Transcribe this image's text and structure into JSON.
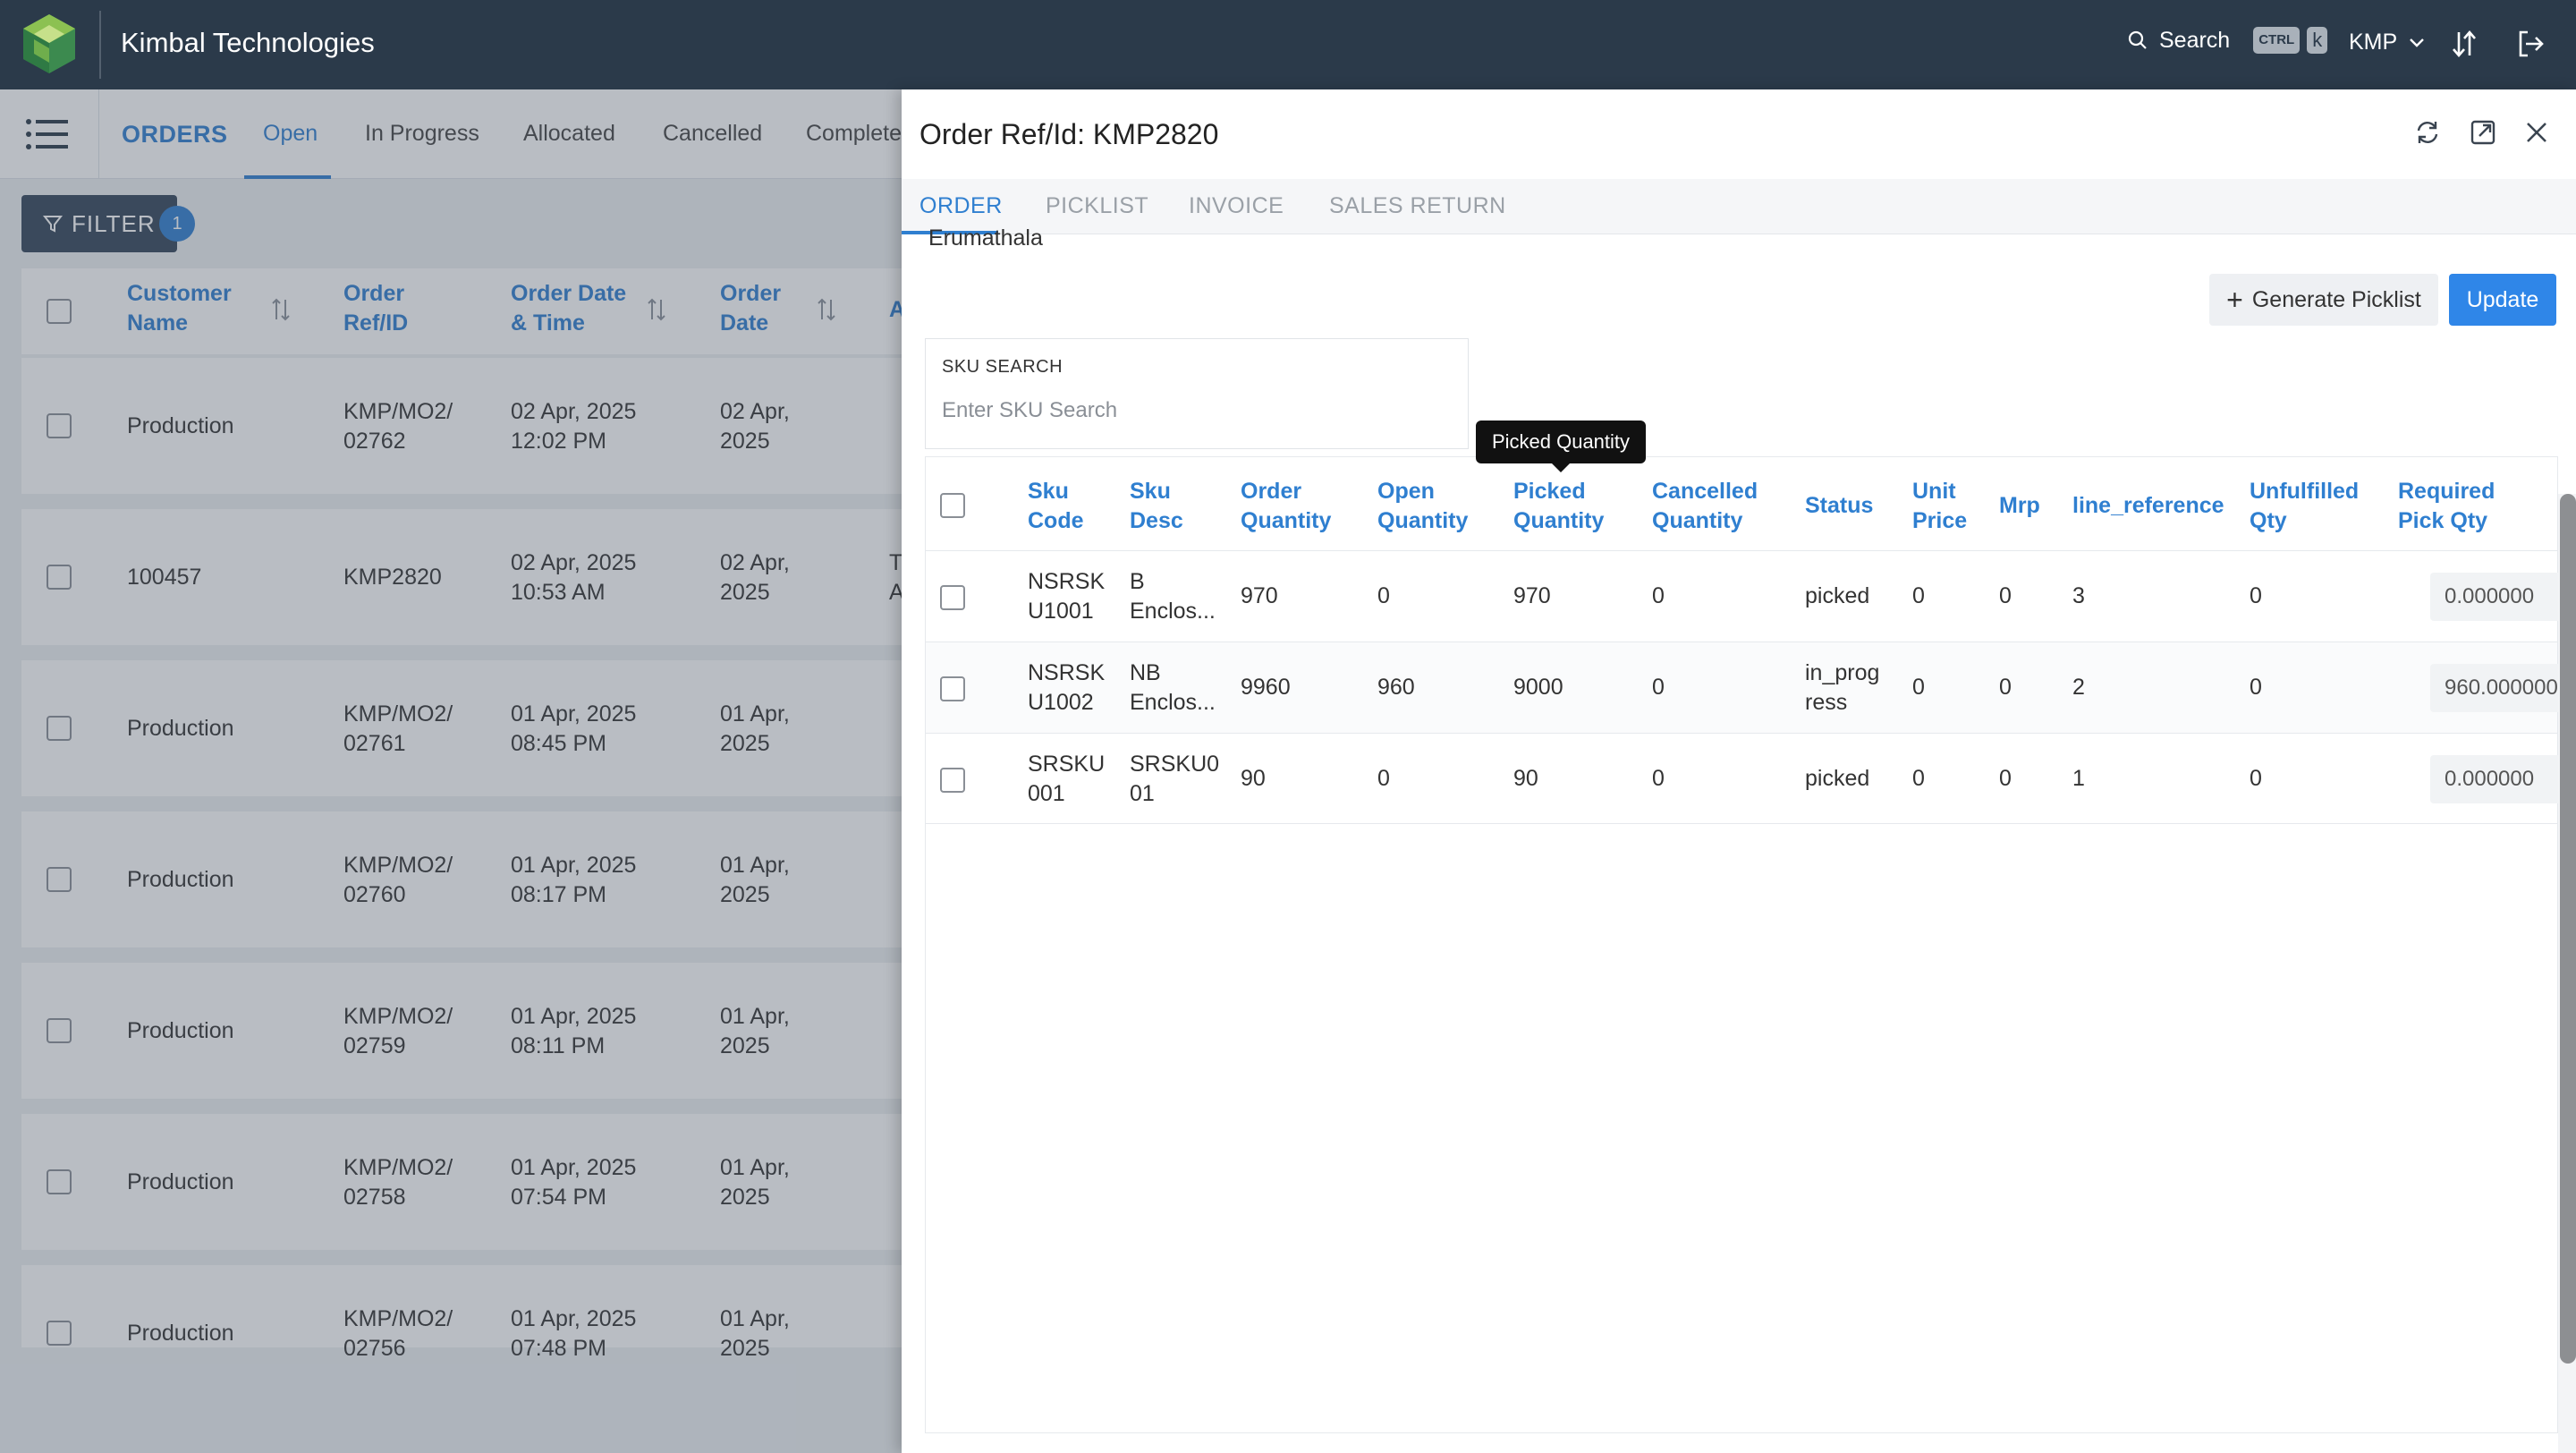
{
  "app": {
    "company": "Kimbal Technologies",
    "search_label": "Search",
    "shortcut_ctrl": "CTRL",
    "shortcut_key": "k",
    "org": "KMP",
    "accent": "#2f7fd0",
    "topbar_bg": "#2b3a4a"
  },
  "list": {
    "section": "ORDERS",
    "tabs": [
      "Open",
      "In Progress",
      "Allocated",
      "Cancelled",
      "Complete"
    ],
    "active_tab": "Open",
    "filter_label": "FILTER",
    "filter_count": "1",
    "columns": [
      "Customer Name",
      "Order Ref/ID",
      "Order Date & Time",
      "Order Date"
    ],
    "rows": [
      {
        "customer": "Production",
        "ref": "KMP/MO2/ 02762",
        "datetime": "02 Apr, 2025 12:02 PM",
        "date": "02 Apr, 2025",
        "extra": ""
      },
      {
        "customer": "100457",
        "ref": "KMP2820",
        "datetime": "02 Apr, 2025 10:53 AM",
        "date": "02 Apr, 2025",
        "extra": "T A"
      },
      {
        "customer": "Production",
        "ref": "KMP/MO2/ 02761",
        "datetime": "01 Apr, 2025 08:45 PM",
        "date": "01 Apr, 2025",
        "extra": ""
      },
      {
        "customer": "Production",
        "ref": "KMP/MO2/ 02760",
        "datetime": "01 Apr, 2025 08:17 PM",
        "date": "01 Apr, 2025",
        "extra": ""
      },
      {
        "customer": "Production",
        "ref": "KMP/MO2/ 02759",
        "datetime": "01 Apr, 2025 08:11 PM",
        "date": "01 Apr, 2025",
        "extra": ""
      },
      {
        "customer": "Production",
        "ref": "KMP/MO2/ 02758",
        "datetime": "01 Apr, 2025 07:54 PM",
        "date": "01 Apr, 2025",
        "extra": ""
      },
      {
        "customer": "Production",
        "ref": "KMP/MO2/ 02756",
        "datetime": "01 Apr, 2025 07:48 PM",
        "date": "01 Apr, 2025",
        "extra": ""
      }
    ]
  },
  "drawer": {
    "title": "Order Ref/Id: KMP2820",
    "tabs": [
      "ORDER",
      "PICKLIST",
      "INVOICE",
      "SALES RETURN"
    ],
    "active_tab": "ORDER",
    "location": "Erumathala",
    "generate_label": "Generate Picklist",
    "update_label": "Update",
    "sku_search_label": "SKU SEARCH",
    "sku_search_placeholder": "Enter SKU Search",
    "tooltip": "Picked Quantity",
    "columns": [
      "Sku Code",
      "Sku Desc",
      "Order Quantity",
      "Open Quantity",
      "Picked Quantity",
      "Cancelled Quantity",
      "Status",
      "Unit Price",
      "Mrp",
      "line_reference",
      "Unfulfilled Qty",
      "Required Pick Qty"
    ],
    "rows": [
      {
        "sku_code": "NSRSK U1001",
        "sku_desc": "B Enclos...",
        "order_qty": "970",
        "open_qty": "0",
        "picked_qty": "970",
        "cancelled_qty": "0",
        "status": "picked",
        "unit_price": "0",
        "mrp": "0",
        "line_ref": "3",
        "unfulfilled": "0",
        "required": "0.000000"
      },
      {
        "sku_code": "NSRSK U1002",
        "sku_desc": "NB Enclos...",
        "order_qty": "9960",
        "open_qty": "960",
        "picked_qty": "9000",
        "cancelled_qty": "0",
        "status": "in_prog ress",
        "unit_price": "0",
        "mrp": "0",
        "line_ref": "2",
        "unfulfilled": "0",
        "required": "960.000000"
      },
      {
        "sku_code": "SRSKU 001",
        "sku_desc": "SRSKU0 01",
        "order_qty": "90",
        "open_qty": "0",
        "picked_qty": "90",
        "cancelled_qty": "0",
        "status": "picked",
        "unit_price": "0",
        "mrp": "0",
        "line_ref": "1",
        "unfulfilled": "0",
        "required": "0.000000"
      }
    ]
  }
}
